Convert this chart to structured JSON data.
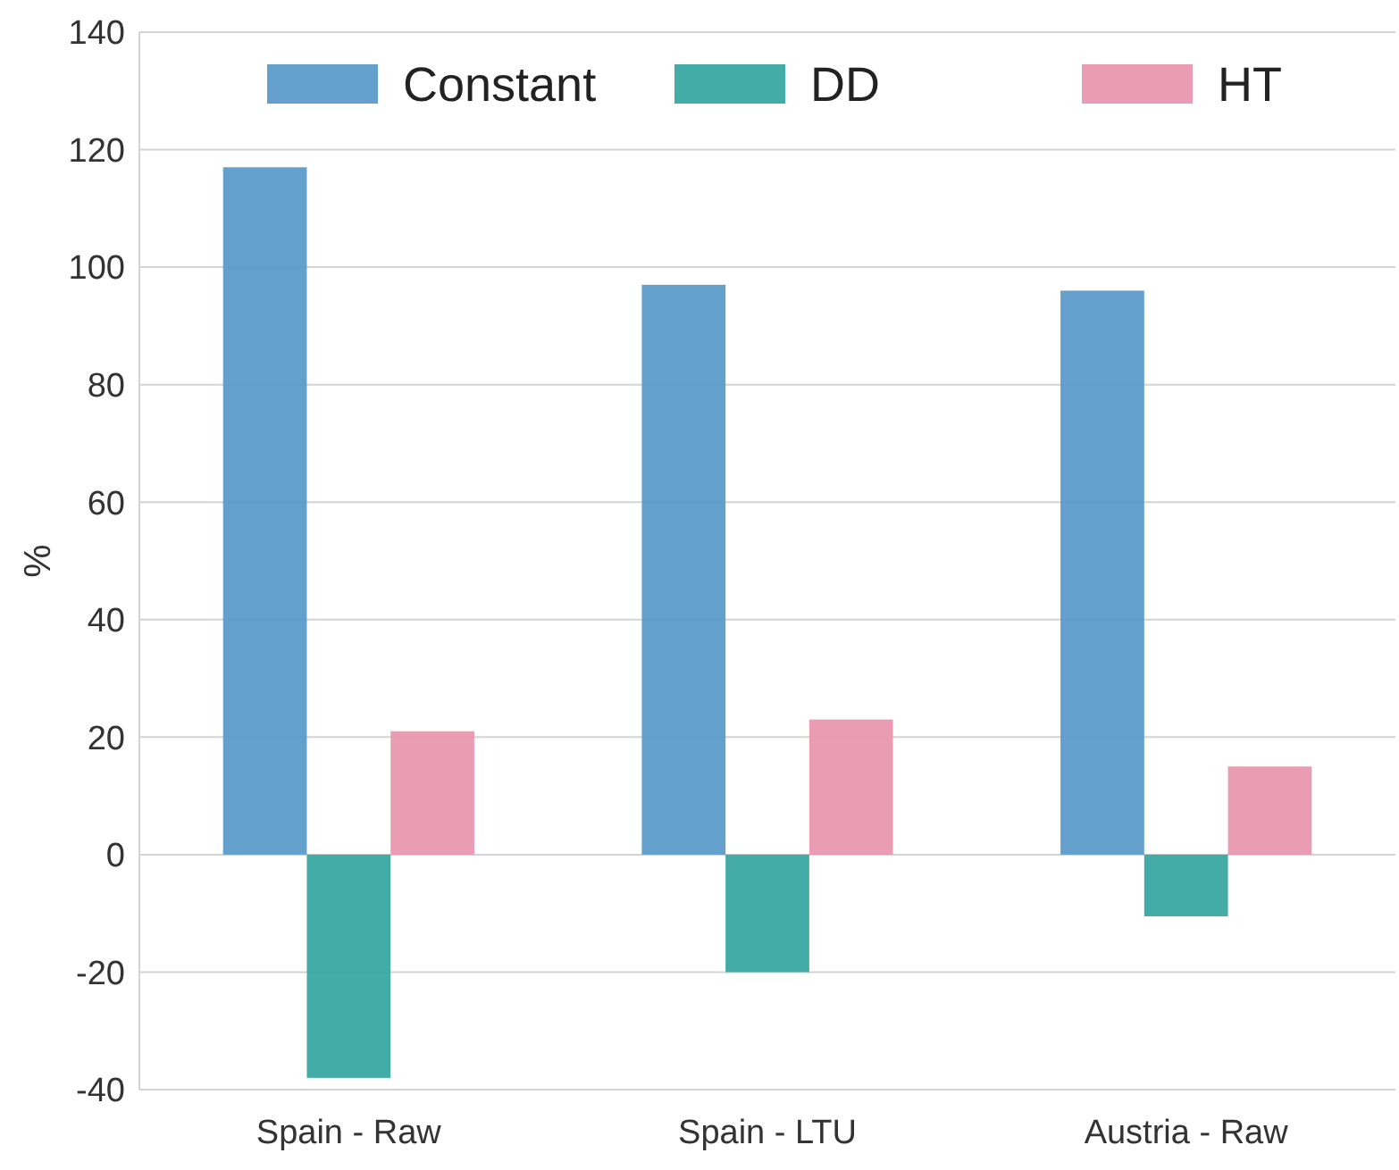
{
  "chart_data": {
    "type": "bar",
    "ylabel": "%",
    "categories": [
      "Spain - Raw",
      "Spain - LTU",
      "Austria - Raw"
    ],
    "series": [
      {
        "name": "Constant",
        "color": "#5b9bc9",
        "values": [
          117,
          97,
          96
        ]
      },
      {
        "name": "DD",
        "color": "#3aa8a2",
        "values": [
          -38,
          -20,
          -10.5
        ]
      },
      {
        "name": "HT",
        "color": "#e897b0",
        "values": [
          21,
          23,
          15
        ]
      }
    ],
    "ylim": [
      -40,
      140
    ],
    "yticks": [
      -40,
      -20,
      0,
      20,
      40,
      60,
      80,
      100,
      120,
      140
    ],
    "grid": "y",
    "legend": "top"
  }
}
